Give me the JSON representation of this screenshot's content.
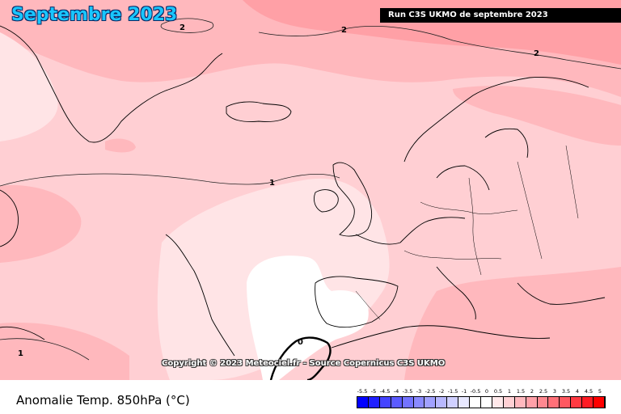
{
  "header": {
    "title": "Septembre 2023",
    "run_label": "Run C3S UKMO de septembre 2023"
  },
  "map": {
    "copyright": "Copyright © 2023 Meteociel.fr - Source Copernicus C3S UKMO",
    "contour_labels": [
      "2",
      "2",
      "2",
      "1",
      "1",
      "0"
    ],
    "colors": {
      "anomaly_0_0_5": "#ffffff",
      "anomaly_0_5_1": "#ffe4e6",
      "anomaly_1_1_5": "#ffcfd3",
      "anomaly_1_5_2": "#ffb8bd",
      "anomaly_2_2_5": "#ffa0a6",
      "coastline": "#000000"
    }
  },
  "legend": {
    "title": "Anomalie Temp. 850hPa (°C)",
    "labels": [
      "-5.5",
      "-5",
      "-4.5",
      "-4",
      "-3.5",
      "-3",
      "-2.5",
      "-2",
      "-1.5",
      "-1",
      "-0.5",
      "0",
      "0.5",
      "1",
      "1.5",
      "2",
      "2.5",
      "3",
      "3.5",
      "4",
      "4.5",
      "5"
    ],
    "colors": [
      "#0000ff",
      "#2020ff",
      "#4444ff",
      "#5b5bff",
      "#7373ff",
      "#8a8aff",
      "#a1a1ff",
      "#b8b8ff",
      "#d0d0ff",
      "#e8e8ff",
      "#ffffff",
      "#ffffff",
      "#ffe8ea",
      "#ffd0d4",
      "#ffb8be",
      "#ffa0a8",
      "#ff8890",
      "#ff7078",
      "#ff5860",
      "#ff3a42",
      "#ff1c24",
      "#ff0000"
    ]
  }
}
